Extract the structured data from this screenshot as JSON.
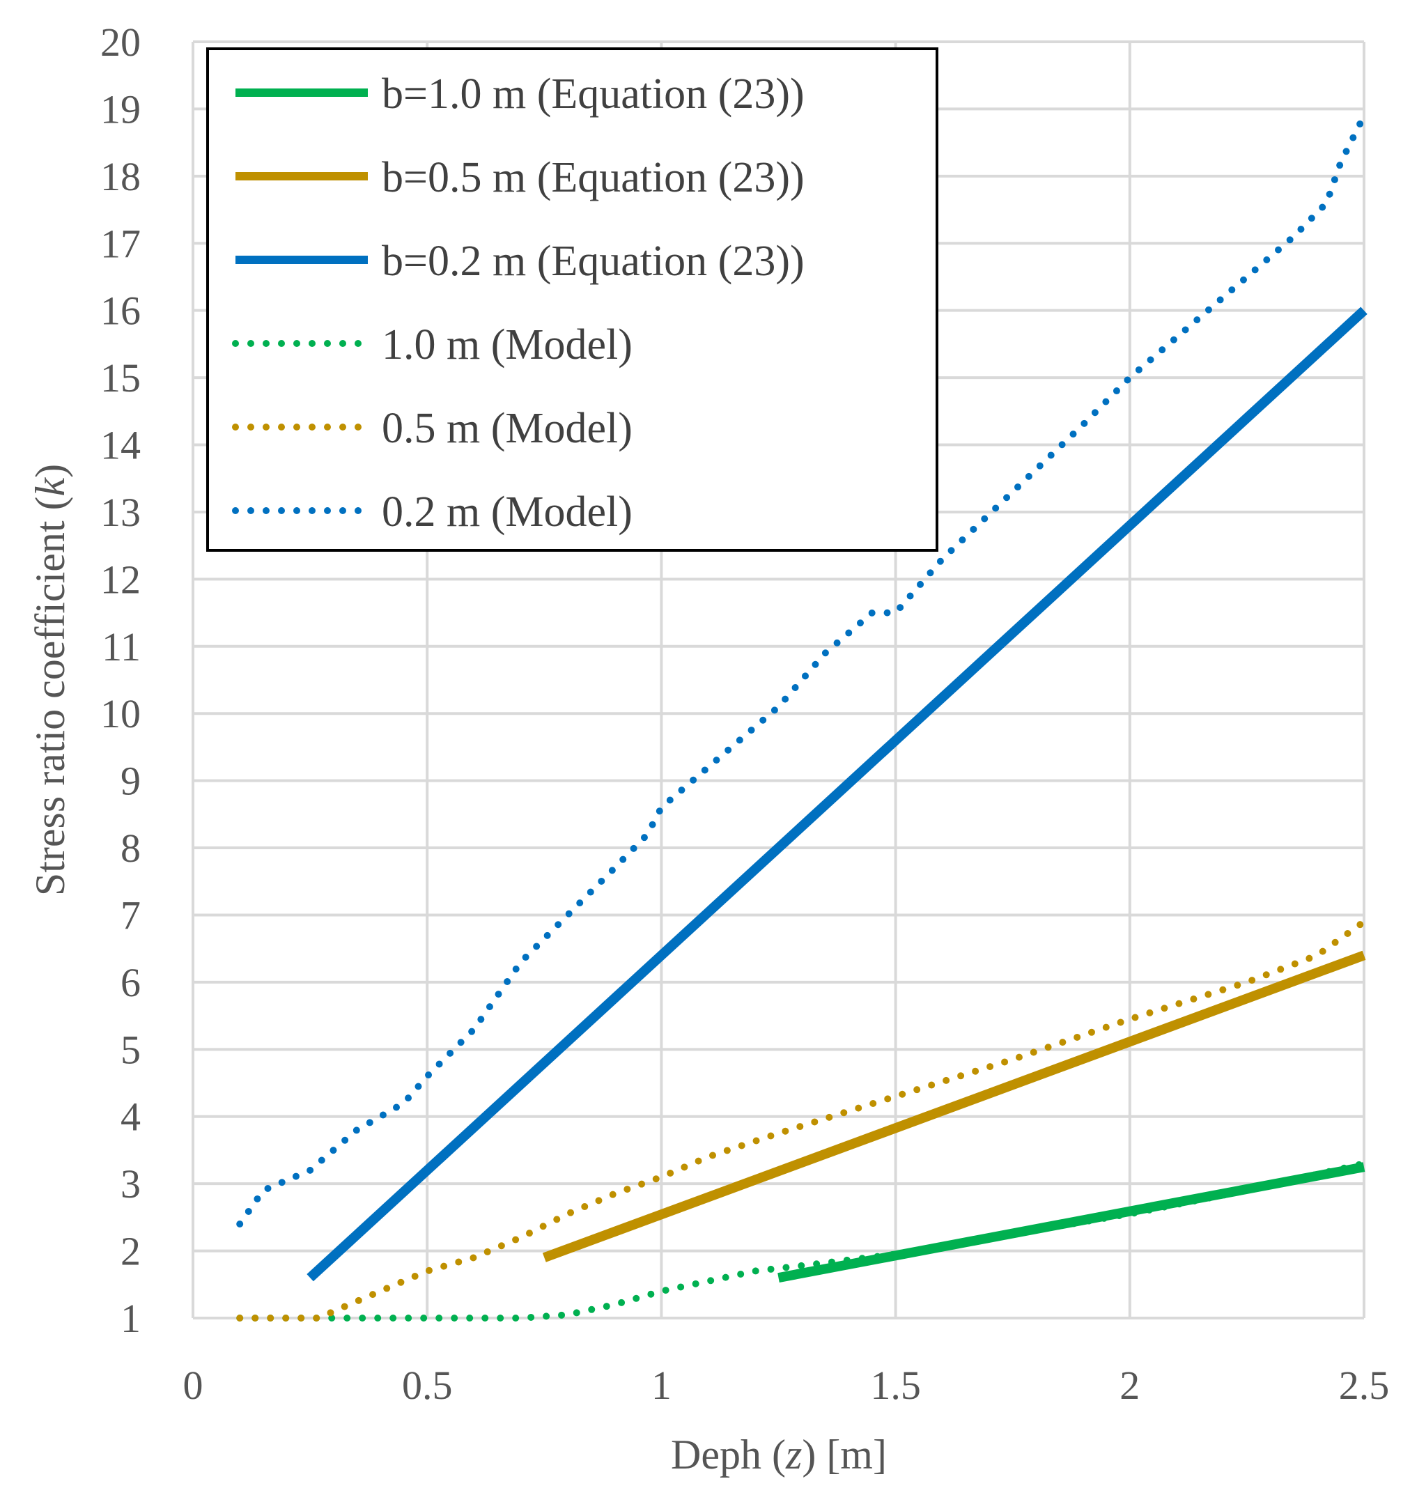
{
  "chart_data": {
    "type": "line",
    "xlabel": "Deph (z) [m]",
    "xlabel_parts": [
      "Deph (",
      "z",
      ") [m]"
    ],
    "ylabel": "Stress ratio coefficient (k)",
    "ylabel_parts": [
      "Stress ratio coefficient (",
      "k",
      ")"
    ],
    "xlim": [
      0,
      2.5
    ],
    "ylim": [
      1,
      20
    ],
    "x_ticks": [
      "0",
      "0.5",
      "1",
      "1.5",
      "2",
      "2.5"
    ],
    "y_ticks": [
      "1",
      "2",
      "3",
      "4",
      "5",
      "6",
      "7",
      "8",
      "9",
      "10",
      "11",
      "12",
      "13",
      "14",
      "15",
      "16",
      "17",
      "18",
      "19",
      "20"
    ],
    "grid": true,
    "legend_position": "top-left",
    "series": [
      {
        "name": "b=1.0 m (Equation (23))",
        "color": "#00b050",
        "style": "solid",
        "x": [
          1.25,
          2.5
        ],
        "y": [
          1.6,
          3.25
        ]
      },
      {
        "name": "b=0.5 m (Equation (23))",
        "color": "#bf9000",
        "style": "solid",
        "x": [
          0.75,
          2.5
        ],
        "y": [
          1.9,
          6.4
        ]
      },
      {
        "name": "b=0.2 m (Equation (23))",
        "color": "#0070c0",
        "style": "solid",
        "x": [
          0.25,
          2.5
        ],
        "y": [
          1.6,
          16.0
        ]
      },
      {
        "name": "1.0 m (Model)",
        "color": "#00b050",
        "style": "dotted",
        "x": [
          0.1,
          0.3,
          0.5,
          0.7,
          0.8,
          0.9,
          1.0,
          1.1,
          1.2,
          1.3,
          1.5,
          1.75,
          2.0,
          2.25,
          2.5
        ],
        "y": [
          1.0,
          1.0,
          1.0,
          1.0,
          1.05,
          1.2,
          1.4,
          1.55,
          1.7,
          1.78,
          1.95,
          2.25,
          2.55,
          2.9,
          3.3
        ]
      },
      {
        "name": "0.5 m (Model)",
        "color": "#bf9000",
        "style": "dotted",
        "x": [
          0.1,
          0.27,
          0.3,
          0.4,
          0.5,
          0.6,
          0.7,
          0.8,
          0.9,
          1.0,
          1.1,
          1.25,
          1.5,
          1.75,
          2.0,
          2.25,
          2.4,
          2.5
        ],
        "y": [
          1.0,
          1.0,
          1.1,
          1.4,
          1.7,
          1.9,
          2.2,
          2.55,
          2.85,
          3.1,
          3.4,
          3.75,
          4.3,
          4.85,
          5.45,
          6.0,
          6.4,
          6.9
        ]
      },
      {
        "name": "0.2 m (Model)",
        "color": "#0070c0",
        "style": "dotted",
        "x": [
          0.1,
          0.15,
          0.25,
          0.35,
          0.45,
          0.5,
          0.6,
          0.7,
          0.8,
          0.9,
          0.97,
          1.0,
          1.1,
          1.25,
          1.35,
          1.45,
          1.5,
          1.6,
          1.75,
          1.9,
          2.0,
          2.1,
          2.25,
          2.35,
          2.42,
          2.45,
          2.5
        ],
        "y": [
          2.4,
          2.9,
          3.2,
          3.8,
          4.2,
          4.6,
          5.3,
          6.3,
          7.0,
          7.7,
          8.2,
          8.6,
          9.2,
          10.1,
          10.9,
          11.5,
          11.5,
          12.3,
          13.3,
          14.3,
          15.0,
          15.6,
          16.5,
          17.1,
          17.6,
          18.2,
          18.9
        ]
      }
    ]
  }
}
